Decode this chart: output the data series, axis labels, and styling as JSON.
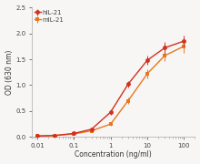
{
  "hIL21_x": [
    0.01,
    0.03,
    0.1,
    0.3,
    1.0,
    3.0,
    10.0,
    30.0,
    100.0
  ],
  "hIL21_y": [
    0.02,
    0.03,
    0.07,
    0.15,
    0.48,
    1.02,
    1.48,
    1.72,
    1.85
  ],
  "hIL21_yerr": [
    0.01,
    0.01,
    0.02,
    0.03,
    0.05,
    0.06,
    0.09,
    0.12,
    0.1
  ],
  "mIL21_x": [
    0.01,
    0.03,
    0.1,
    0.3,
    1.0,
    3.0,
    10.0,
    30.0,
    100.0
  ],
  "mIL21_y": [
    0.02,
    0.03,
    0.06,
    0.12,
    0.25,
    0.7,
    1.22,
    1.57,
    1.75
  ],
  "mIL21_yerr": [
    0.01,
    0.01,
    0.02,
    0.03,
    0.04,
    0.06,
    0.08,
    0.1,
    0.12
  ],
  "hIL21_color": "#d0321e",
  "mIL21_color": "#e87820",
  "ylabel": "OD (630 nm)",
  "xlabel": "Concentration (ng/ml)",
  "ylim": [
    0,
    2.5
  ],
  "yticks": [
    0.0,
    0.5,
    1.0,
    1.5,
    2.0,
    2.5
  ],
  "ytick_labels": [
    "0.0",
    "0.5",
    "1.0",
    "1.5",
    "2.0",
    "2.5"
  ],
  "legend_labels": [
    "hIL-21",
    "mIL-21"
  ],
  "marker_size": 3.5,
  "line_width": 1.0,
  "capsize": 1.8,
  "elinewidth": 0.7,
  "background_color": "#f7f6f4",
  "plot_bg_color": "#f7f6f4"
}
